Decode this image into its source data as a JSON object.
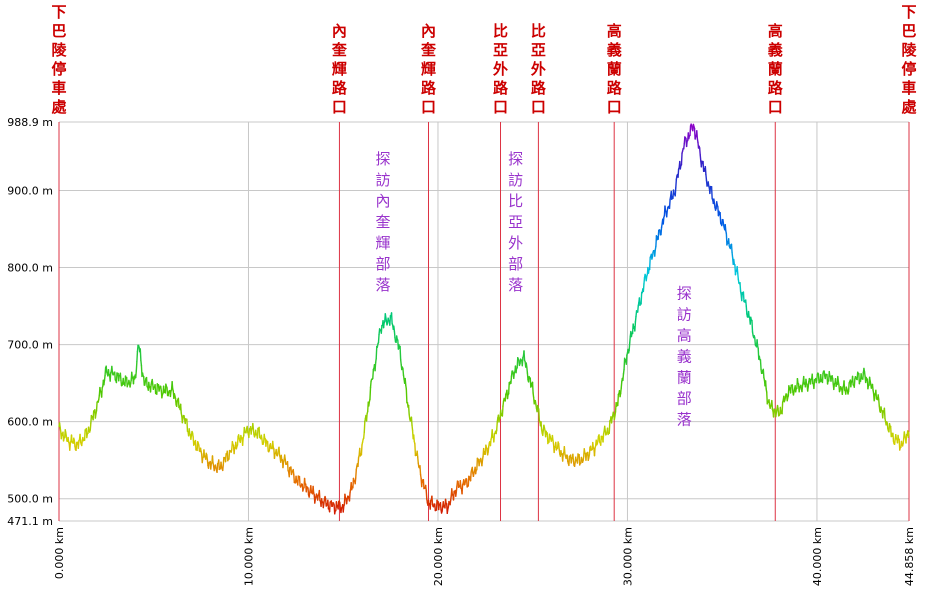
{
  "chart_data": {
    "type": "line",
    "title": "",
    "xlabel": "",
    "ylabel": "",
    "xlim": [
      0,
      44.858
    ],
    "ylim": [
      471.1,
      988.9
    ],
    "grid": true,
    "x_ticks": [
      {
        "value": 0,
        "label": "0.000 km"
      },
      {
        "value": 10,
        "label": "10.000 km"
      },
      {
        "value": 20,
        "label": "20.000 km"
      },
      {
        "value": 30,
        "label": "30.000 km"
      },
      {
        "value": 40,
        "label": "40.000 km"
      },
      {
        "value": 44.858,
        "label": "44.858 km"
      }
    ],
    "y_ticks": [
      {
        "value": 988.9,
        "label": "988.9 m"
      },
      {
        "value": 900,
        "label": "900.0 m"
      },
      {
        "value": 800,
        "label": "800.0 m"
      },
      {
        "value": 700,
        "label": "700.0 m"
      },
      {
        "value": 600,
        "label": "600.0 m"
      },
      {
        "value": 500,
        "label": "500.0 m"
      },
      {
        "value": 471.1,
        "label": "471.1 m"
      }
    ],
    "markers": [
      {
        "x": 0,
        "label": "下巴陵停車處"
      },
      {
        "x": 14.8,
        "label": "內奎輝路口"
      },
      {
        "x": 19.5,
        "label": "內奎輝路口"
      },
      {
        "x": 23.3,
        "label": "比亞外路口"
      },
      {
        "x": 25.3,
        "label": "比亞外路口"
      },
      {
        "x": 29.3,
        "label": "高義蘭路口"
      },
      {
        "x": 37.8,
        "label": "高義蘭路口"
      },
      {
        "x": 44.858,
        "label": "下巴陵停車處"
      }
    ],
    "annotations": [
      {
        "x": 17.1,
        "y": 945,
        "text": "探訪內奎輝部落"
      },
      {
        "x": 24.1,
        "y": 945,
        "text": "探訪比亞外部落"
      },
      {
        "x": 33.0,
        "y": 770,
        "text": "探訪高義蘭部落"
      }
    ],
    "series": [
      {
        "x": [
          0,
          0.5,
          1.0,
          1.5,
          2.0,
          2.5,
          3.0,
          3.5,
          4.0,
          4.2,
          4.5,
          5.0,
          5.5,
          6.0,
          6.5,
          7.0,
          7.5,
          8.0,
          8.5,
          9.0,
          9.5,
          10.0,
          10.5,
          11.0,
          11.5,
          12.0,
          12.5,
          13.0,
          13.5,
          14.0,
          14.5,
          15.0,
          15.5,
          16.0,
          16.5,
          17.0,
          17.5,
          18.0,
          18.5,
          19.0,
          19.5,
          20.0,
          20.5,
          21.0,
          21.5,
          22.0,
          22.5,
          23.0,
          23.5,
          24.0,
          24.5,
          25.0,
          25.5,
          26.0,
          26.5,
          27.0,
          27.5,
          28.0,
          28.5,
          29.0,
          29.5,
          30.0,
          30.5,
          31.0,
          31.5,
          32.0,
          32.5,
          33.0,
          33.5,
          34.0,
          34.5,
          35.0,
          35.5,
          36.0,
          36.5,
          37.0,
          37.5,
          38.0,
          38.5,
          39.0,
          39.5,
          40.0,
          40.5,
          41.0,
          41.5,
          42.0,
          42.5,
          43.0,
          43.5,
          44.0,
          44.5,
          44.858
        ],
        "y": [
          590,
          575,
          570,
          585,
          620,
          665,
          660,
          650,
          655,
          700,
          650,
          645,
          640,
          640,
          610,
          580,
          560,
          545,
          540,
          560,
          575,
          590,
          585,
          570,
          560,
          545,
          525,
          515,
          505,
          495,
          490,
          490,
          515,
          570,
          650,
          725,
          735,
          690,
          610,
          540,
          495,
          490,
          490,
          515,
          520,
          540,
          560,
          585,
          625,
          665,
          685,
          640,
          590,
          575,
          560,
          550,
          550,
          560,
          575,
          590,
          625,
          690,
          740,
          790,
          830,
          870,
          900,
          960,
          985,
          930,
          890,
          860,
          820,
          770,
          730,
          680,
          620,
          610,
          640,
          645,
          650,
          655,
          660,
          650,
          640,
          655,
          660,
          640,
          610,
          580,
          570,
          590
        ]
      }
    ]
  }
}
